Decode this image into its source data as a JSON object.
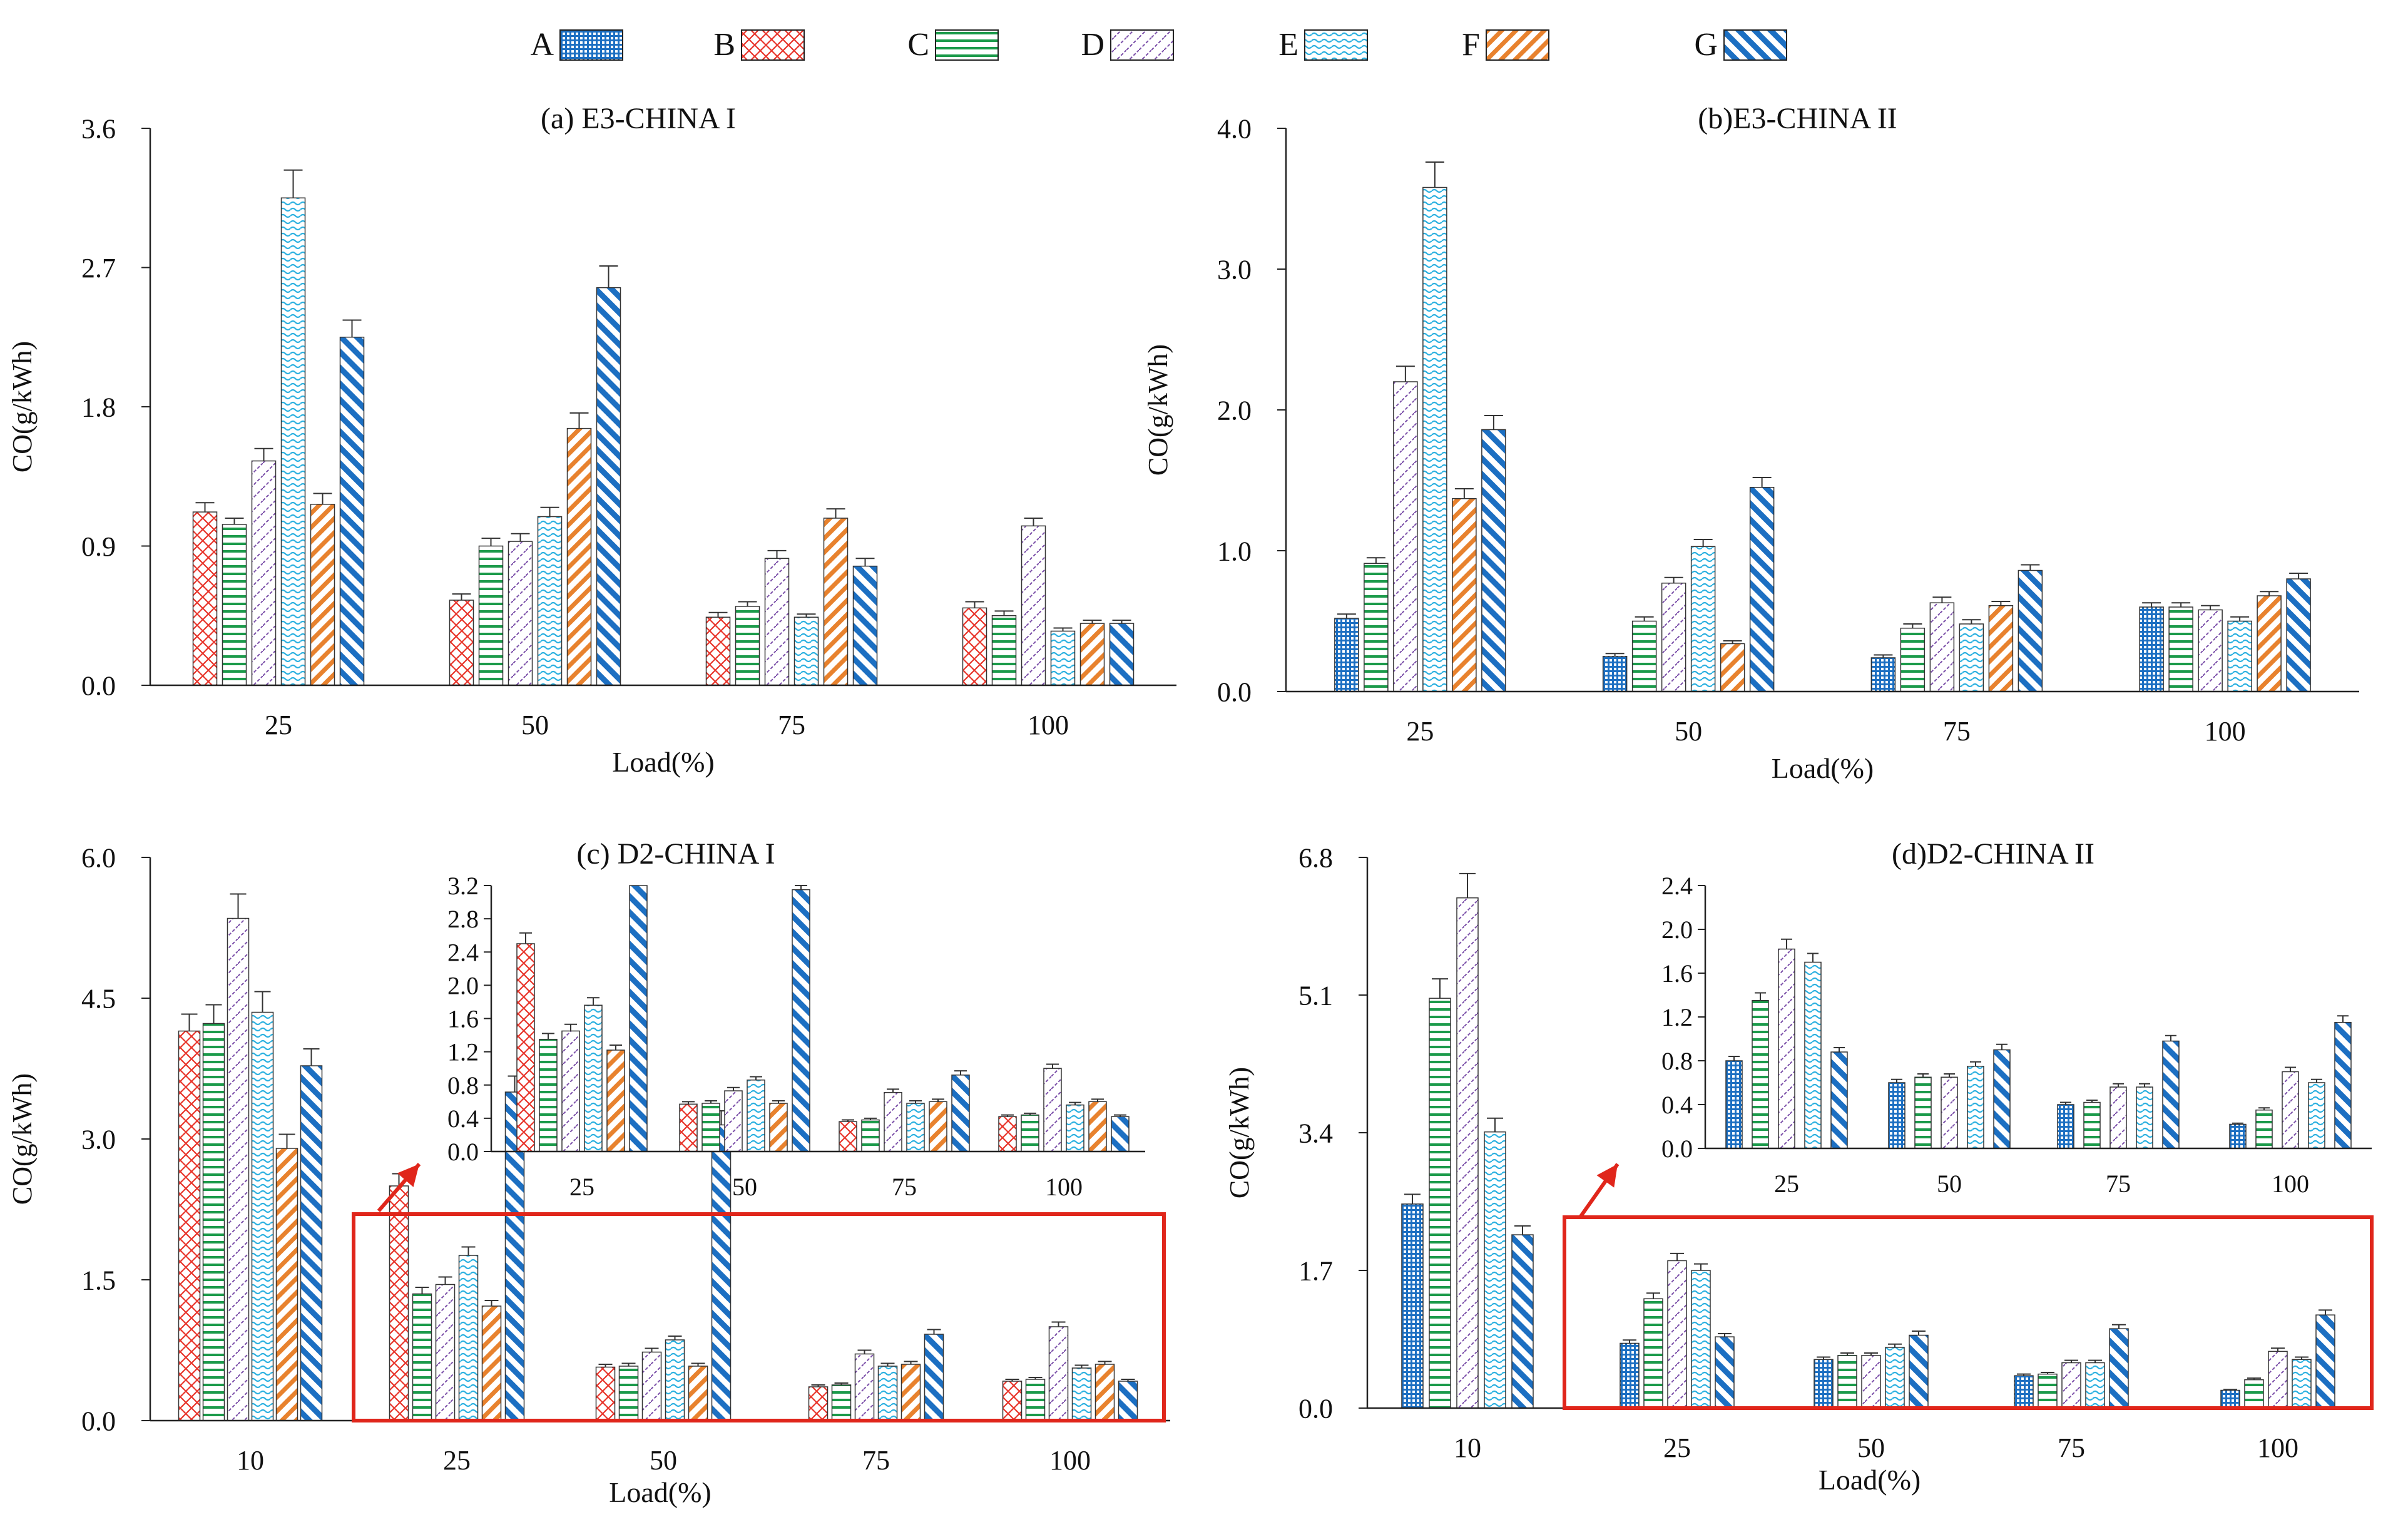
{
  "legend": {
    "items": [
      {
        "label": "A",
        "pattern": "grid",
        "color": "#1c6fc2"
      },
      {
        "label": "B",
        "pattern": "cross",
        "color": "#e8342a"
      },
      {
        "label": "C",
        "pattern": "hlines",
        "color": "#1b9a4a"
      },
      {
        "label": "D",
        "pattern": "zigzag",
        "color": "#7a4ea8"
      },
      {
        "label": "E",
        "pattern": "wave",
        "color": "#2ab0e0"
      },
      {
        "label": "F",
        "pattern": "diag",
        "color": "#e8822e"
      },
      {
        "label": "G",
        "pattern": "diagbold",
        "color": "#1c6fc2"
      }
    ]
  },
  "highlight_color": "#e0261b",
  "chart_data": [
    {
      "type": "bar",
      "title": "(a) E3-CHINA I",
      "xlabel": "Load(%)",
      "ylabel": "CO(g/kWh)",
      "ylim": [
        0,
        3.6
      ],
      "yticks": [
        "0.0",
        "0.9",
        "1.8",
        "2.7",
        "3.6"
      ],
      "categories": [
        "25",
        "50",
        "75",
        "100"
      ],
      "series": [
        {
          "name": "B",
          "values": [
            1.12,
            0.55,
            0.44,
            0.5
          ],
          "errors": [
            0.06,
            0.04,
            0.03,
            0.04
          ]
        },
        {
          "name": "C",
          "values": [
            1.04,
            0.9,
            0.51,
            0.45
          ],
          "errors": [
            0.04,
            0.05,
            0.03,
            0.03
          ]
        },
        {
          "name": "D",
          "values": [
            1.45,
            0.93,
            0.82,
            1.03
          ],
          "errors": [
            0.08,
            0.05,
            0.05,
            0.05
          ]
        },
        {
          "name": "E",
          "values": [
            3.15,
            1.09,
            0.44,
            0.35
          ],
          "errors": [
            0.18,
            0.06,
            0.02,
            0.02
          ]
        },
        {
          "name": "F",
          "values": [
            1.17,
            1.66,
            1.08,
            0.4
          ],
          "errors": [
            0.07,
            0.1,
            0.06,
            0.02
          ]
        },
        {
          "name": "G",
          "values": [
            2.25,
            2.57,
            0.77,
            0.4
          ],
          "errors": [
            0.11,
            0.14,
            0.05,
            0.02
          ]
        }
      ]
    },
    {
      "type": "bar",
      "title": "(b)E3-CHINA II",
      "xlabel": "Load(%)",
      "ylabel": "CO(g/kWh)",
      "ylim": [
        0,
        4.0
      ],
      "yticks": [
        "0.0",
        "1.0",
        "2.0",
        "3.0",
        "4.0"
      ],
      "categories": [
        "25",
        "50",
        "75",
        "100"
      ],
      "series": [
        {
          "name": "A",
          "values": [
            0.52,
            0.25,
            0.24,
            0.6
          ],
          "errors": [
            0.03,
            0.02,
            0.02,
            0.03
          ]
        },
        {
          "name": "C",
          "values": [
            0.91,
            0.5,
            0.45,
            0.6
          ],
          "errors": [
            0.04,
            0.03,
            0.03,
            0.03
          ]
        },
        {
          "name": "D",
          "values": [
            2.2,
            0.77,
            0.63,
            0.58
          ],
          "errors": [
            0.11,
            0.04,
            0.04,
            0.03
          ]
        },
        {
          "name": "E",
          "values": [
            3.58,
            1.03,
            0.48,
            0.5
          ],
          "errors": [
            0.18,
            0.05,
            0.03,
            0.03
          ]
        },
        {
          "name": "F",
          "values": [
            1.37,
            0.34,
            0.61,
            0.68
          ],
          "errors": [
            0.07,
            0.02,
            0.03,
            0.03
          ]
        },
        {
          "name": "G",
          "values": [
            1.86,
            1.45,
            0.86,
            0.8
          ],
          "errors": [
            0.1,
            0.07,
            0.04,
            0.04
          ]
        }
      ]
    },
    {
      "type": "bar",
      "title": "(c) D2-CHINA I",
      "xlabel": "Load(%)",
      "ylabel": "CO(g/kWh)",
      "ylim": [
        0,
        6.0
      ],
      "yticks": [
        "0.0",
        "1.5",
        "3.0",
        "4.5",
        "6.0"
      ],
      "categories": [
        "10",
        "25",
        "50",
        "75",
        "100"
      ],
      "series": [
        {
          "name": "B",
          "values": [
            4.15,
            2.5,
            0.57,
            0.36,
            0.42
          ],
          "errors": [
            0.18,
            0.13,
            0.03,
            0.02,
            0.02
          ]
        },
        {
          "name": "C",
          "values": [
            4.23,
            1.35,
            0.58,
            0.38,
            0.44
          ],
          "errors": [
            0.2,
            0.07,
            0.03,
            0.02,
            0.02
          ]
        },
        {
          "name": "D",
          "values": [
            5.35,
            1.45,
            0.73,
            0.71,
            1.0
          ],
          "errors": [
            0.26,
            0.08,
            0.04,
            0.04,
            0.05
          ]
        },
        {
          "name": "E",
          "values": [
            4.35,
            1.76,
            0.86,
            0.58,
            0.56
          ],
          "errors": [
            0.22,
            0.09,
            0.04,
            0.03,
            0.03
          ]
        },
        {
          "name": "F",
          "values": [
            2.9,
            1.22,
            0.58,
            0.6,
            0.6
          ],
          "errors": [
            0.15,
            0.06,
            0.03,
            0.03,
            0.03
          ]
        },
        {
          "name": "G",
          "values": [
            3.78,
            3.5,
            3.15,
            0.92,
            0.42
          ],
          "errors": [
            0.18,
            0.17,
            0.15,
            0.05,
            0.02
          ]
        }
      ],
      "inset": {
        "ylim": [
          0,
          3.2
        ],
        "yticks": [
          "0.0",
          "0.4",
          "0.8",
          "1.2",
          "1.6",
          "2.0",
          "2.4",
          "2.8",
          "3.2"
        ],
        "categories": [
          "25",
          "50",
          "75",
          "100"
        ]
      }
    },
    {
      "type": "bar",
      "title": "(d)D2-CHINA II",
      "xlabel": "Load(%)",
      "ylabel": "CO(g/kWh)",
      "ylim": [
        0,
        6.8
      ],
      "yticks": [
        "0.0",
        "1.7",
        "3.4",
        "5.1",
        "6.8"
      ],
      "categories": [
        "10",
        "25",
        "50",
        "75",
        "100"
      ],
      "series": [
        {
          "name": "A",
          "values": [
            2.52,
            0.8,
            0.6,
            0.4,
            0.22
          ],
          "errors": [
            0.12,
            0.04,
            0.03,
            0.02,
            0.01
          ]
        },
        {
          "name": "C",
          "values": [
            5.06,
            1.35,
            0.65,
            0.42,
            0.35
          ],
          "errors": [
            0.24,
            0.07,
            0.03,
            0.02,
            0.02
          ]
        },
        {
          "name": "D",
          "values": [
            6.3,
            1.82,
            0.65,
            0.56,
            0.7
          ],
          "errors": [
            0.3,
            0.09,
            0.03,
            0.03,
            0.04
          ]
        },
        {
          "name": "E",
          "values": [
            3.41,
            1.7,
            0.75,
            0.56,
            0.6
          ],
          "errors": [
            0.17,
            0.08,
            0.04,
            0.03,
            0.03
          ]
        },
        {
          "name": "G",
          "values": [
            2.14,
            0.88,
            0.9,
            0.98,
            1.15
          ],
          "errors": [
            0.11,
            0.04,
            0.05,
            0.05,
            0.06
          ]
        }
      ],
      "inset": {
        "ylim": [
          0,
          2.4
        ],
        "yticks": [
          "0.0",
          "0.4",
          "0.8",
          "1.2",
          "1.6",
          "2.0",
          "2.4"
        ],
        "categories": [
          "25",
          "50",
          "75",
          "100"
        ]
      }
    }
  ]
}
